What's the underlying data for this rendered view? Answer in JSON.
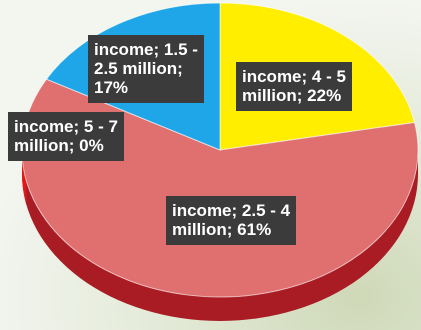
{
  "chart_data": {
    "type": "pie",
    "style": "3d",
    "slices": [
      {
        "label": "income; 4 - 5\nmillion; 22%",
        "category": "income",
        "range": "4 - 5 million",
        "value": 22,
        "color": "#ffee00",
        "side_color": "#c9bb00"
      },
      {
        "label": "income; 2.5 - 4\nmillion; 61%",
        "category": "income",
        "range": "2.5 - 4 million",
        "value": 61,
        "color": "#e07070",
        "side_color": "#a91c24"
      },
      {
        "label": "income; 5 - 7\nmillion; 0%",
        "category": "income",
        "range": "5 - 7 million",
        "value": 0,
        "color": "#e02020",
        "side_color": "#e51616"
      },
      {
        "label": "income; 1.5 -\n2.5 million;\n17%",
        "category": "income",
        "range": "1.5 - 2.5 million",
        "value": 17,
        "color": "#1ea6e8",
        "side_color": "#1580b8"
      }
    ],
    "legend": "none"
  }
}
